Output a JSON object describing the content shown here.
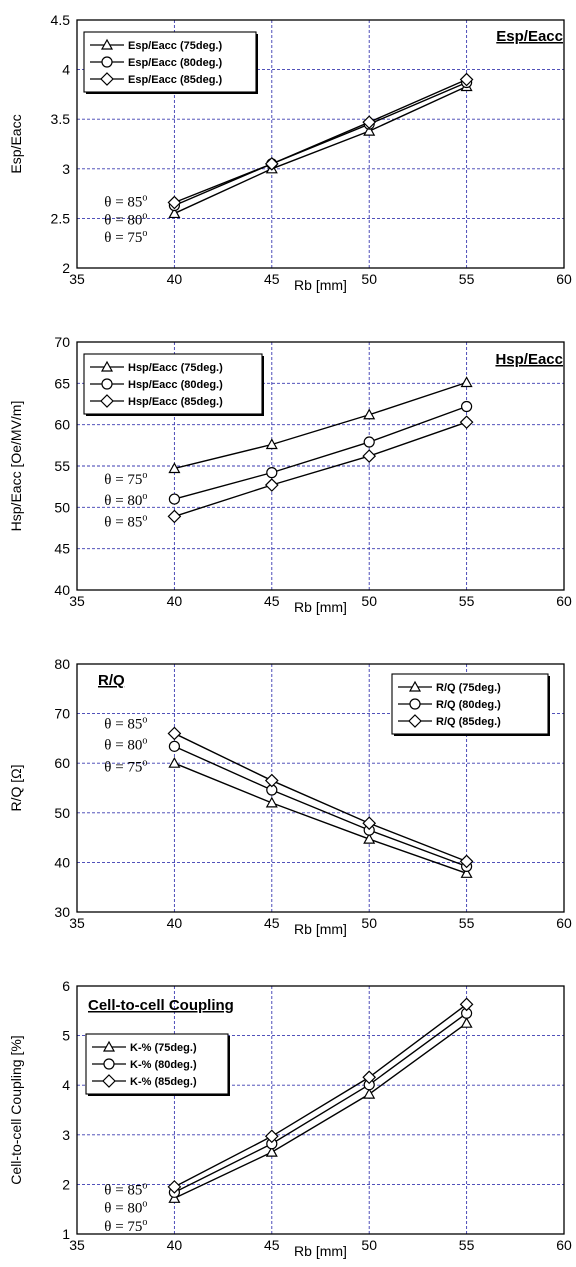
{
  "chart_data": [
    {
      "type": "line",
      "title": "Esp/Eacc",
      "xlabel": "Rb [mm]",
      "ylabel": "Esp/Eacc",
      "xlim": [
        35,
        60
      ],
      "ylim": [
        2,
        4.5
      ],
      "xticks": [
        "35",
        "40",
        "45",
        "50",
        "55",
        "60"
      ],
      "yticks": [
        "2",
        "2.5",
        "3",
        "3.5",
        "4",
        "4.5"
      ],
      "x": [
        40,
        45,
        50,
        55
      ],
      "series": [
        {
          "name": "Esp/Eacc (75deg.)",
          "marker": "triangle",
          "values": [
            2.55,
            3.0,
            3.38,
            3.83
          ]
        },
        {
          "name": "Esp/Eacc (80deg.)",
          "marker": "circle",
          "values": [
            2.63,
            3.05,
            3.45,
            3.87
          ]
        },
        {
          "name": "Esp/Eacc (85deg.)",
          "marker": "diamond",
          "values": [
            2.66,
            3.05,
            3.47,
            3.9
          ]
        }
      ],
      "legend": "top-left",
      "annotations": [
        {
          "theta": "θ = 85",
          "deg": "o",
          "x": 36.4,
          "y": 2.62
        },
        {
          "theta": "θ = 80",
          "deg": "o",
          "x": 36.4,
          "y": 2.44
        },
        {
          "theta": "θ = 75",
          "deg": "o",
          "x": 36.4,
          "y": 2.26
        }
      ],
      "grid": true
    },
    {
      "type": "line",
      "title": "Hsp/Eacc",
      "xlabel": "Rb [mm]",
      "ylabel": "Hsp/Eacc   [Oe/MV/m]",
      "xlim": [
        35,
        60
      ],
      "ylim": [
        40,
        70
      ],
      "xticks": [
        "35",
        "40",
        "45",
        "50",
        "55",
        "60"
      ],
      "yticks": [
        "40",
        "45",
        "50",
        "55",
        "60",
        "65",
        "70"
      ],
      "x": [
        40,
        45,
        50,
        55
      ],
      "series": [
        {
          "name": "Hsp/Eacc (75deg.)",
          "marker": "triangle",
          "values": [
            54.7,
            57.6,
            61.2,
            65.1
          ]
        },
        {
          "name": "Hsp/Eacc (80deg.)",
          "marker": "circle",
          "values": [
            51.0,
            54.2,
            57.9,
            62.2
          ]
        },
        {
          "name": "Hsp/Eacc (85deg.)",
          "marker": "diamond",
          "values": [
            48.9,
            52.7,
            56.2,
            60.3
          ]
        }
      ],
      "legend": "top-left",
      "annotations": [
        {
          "theta": "θ = 75",
          "deg": "o",
          "x": 36.4,
          "y": 52.8
        },
        {
          "theta": "θ = 80",
          "deg": "o",
          "x": 36.4,
          "y": 50.3
        },
        {
          "theta": "θ = 85",
          "deg": "o",
          "x": 36.4,
          "y": 47.7
        }
      ],
      "grid": true
    },
    {
      "type": "line",
      "title": "R/Q",
      "xlabel": "Rb [mm]",
      "ylabel": "R/Q  [Ω]",
      "xlim": [
        35,
        60
      ],
      "ylim": [
        30,
        80
      ],
      "xticks": [
        "35",
        "40",
        "45",
        "50",
        "55",
        "60"
      ],
      "yticks": [
        "30",
        "40",
        "50",
        "60",
        "70",
        "80"
      ],
      "x": [
        40,
        45,
        50,
        55
      ],
      "series": [
        {
          "name": "R/Q (75deg.)",
          "marker": "triangle",
          "values": [
            60.0,
            52.0,
            44.7,
            37.8
          ]
        },
        {
          "name": "R/Q (80deg.)",
          "marker": "circle",
          "values": [
            63.4,
            54.6,
            46.5,
            39.2
          ]
        },
        {
          "name": "R/Q (85deg.)",
          "marker": "diamond",
          "values": [
            66.0,
            56.5,
            47.9,
            40.2
          ]
        }
      ],
      "legend": "top-right",
      "annotations": [
        {
          "theta": "θ = 85",
          "deg": "o",
          "x": 36.4,
          "y": 67.0
        },
        {
          "theta": "θ = 80",
          "deg": "o",
          "x": 36.4,
          "y": 62.8
        },
        {
          "theta": "θ = 75",
          "deg": "o",
          "x": 36.4,
          "y": 58.3
        }
      ],
      "grid": true
    },
    {
      "type": "line",
      "title": "Cell-to-cell Coupling",
      "xlabel": "Rb [mm]",
      "ylabel": "Cell-to-cell Coupling  [%]",
      "xlim": [
        35,
        60
      ],
      "ylim": [
        1,
        6
      ],
      "xticks": [
        "35",
        "40",
        "45",
        "50",
        "55",
        "60"
      ],
      "yticks": [
        "1",
        "2",
        "3",
        "4",
        "5",
        "6"
      ],
      "x": [
        40,
        45,
        50,
        55
      ],
      "series": [
        {
          "name": "K-% (75deg.)",
          "marker": "triangle",
          "values": [
            1.72,
            2.65,
            3.82,
            5.25
          ]
        },
        {
          "name": "K-% (80deg.)",
          "marker": "circle",
          "values": [
            1.84,
            2.82,
            4.01,
            5.45
          ]
        },
        {
          "name": "K-% (85deg.)",
          "marker": "diamond",
          "values": [
            1.95,
            2.97,
            4.16,
            5.63
          ]
        }
      ],
      "legend": "top-left",
      "annotations": [
        {
          "theta": "θ = 85",
          "deg": "o",
          "x": 36.4,
          "y": 1.8
        },
        {
          "theta": "θ = 80",
          "deg": "o",
          "x": 36.4,
          "y": 1.43
        },
        {
          "theta": "θ = 75",
          "deg": "o",
          "x": 36.4,
          "y": 1.06
        }
      ],
      "grid": true
    }
  ]
}
